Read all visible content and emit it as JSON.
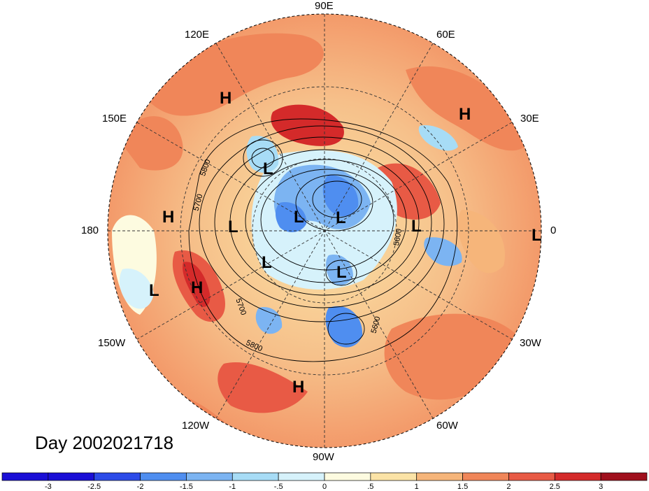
{
  "title": "Day 2002021718",
  "longitude_labels": {
    "top": "90E",
    "top_right": "60E",
    "upper_right": "30E",
    "right": "0",
    "lower_right": "30W",
    "bottom_right": "60W",
    "bottom": "90W",
    "bottom_left": "120W",
    "lower_left": "150W",
    "left": "180",
    "upper_left": "150E",
    "top_left": "120E"
  },
  "pressure_centers": [
    {
      "label": "H",
      "id": "h1"
    },
    {
      "label": "H",
      "id": "h2"
    },
    {
      "label": "H",
      "id": "h3"
    },
    {
      "label": "H",
      "id": "h4"
    },
    {
      "label": "H",
      "id": "h5"
    },
    {
      "label": "L",
      "id": "l1"
    },
    {
      "label": "L",
      "id": "l2"
    },
    {
      "label": "L",
      "id": "l3"
    },
    {
      "label": "L",
      "id": "l4"
    },
    {
      "label": "L",
      "id": "l5"
    },
    {
      "label": "L",
      "id": "l6"
    },
    {
      "label": "L",
      "id": "l7"
    },
    {
      "label": "L",
      "id": "l8"
    },
    {
      "label": "L",
      "id": "l9"
    }
  ],
  "contour_labels": [
    "5800",
    "5700",
    "5700",
    "5800",
    "5600",
    "5600"
  ],
  "colorbar": {
    "ticks": [
      "-3",
      "-2.5",
      "-2",
      "-1.5",
      "-1",
      "-.5",
      "0",
      ".5",
      "1",
      "1.5",
      "2",
      "2.5",
      "3"
    ],
    "colors": [
      "#1a0fd6",
      "#2c4be8",
      "#4f8ef0",
      "#7cb4f2",
      "#a7dcf6",
      "#d6f2fb",
      "#fdfbe0",
      "#fbe3a6",
      "#f6b57a",
      "#f08659",
      "#e85a45",
      "#d42a2a",
      "#a0101d"
    ]
  }
}
